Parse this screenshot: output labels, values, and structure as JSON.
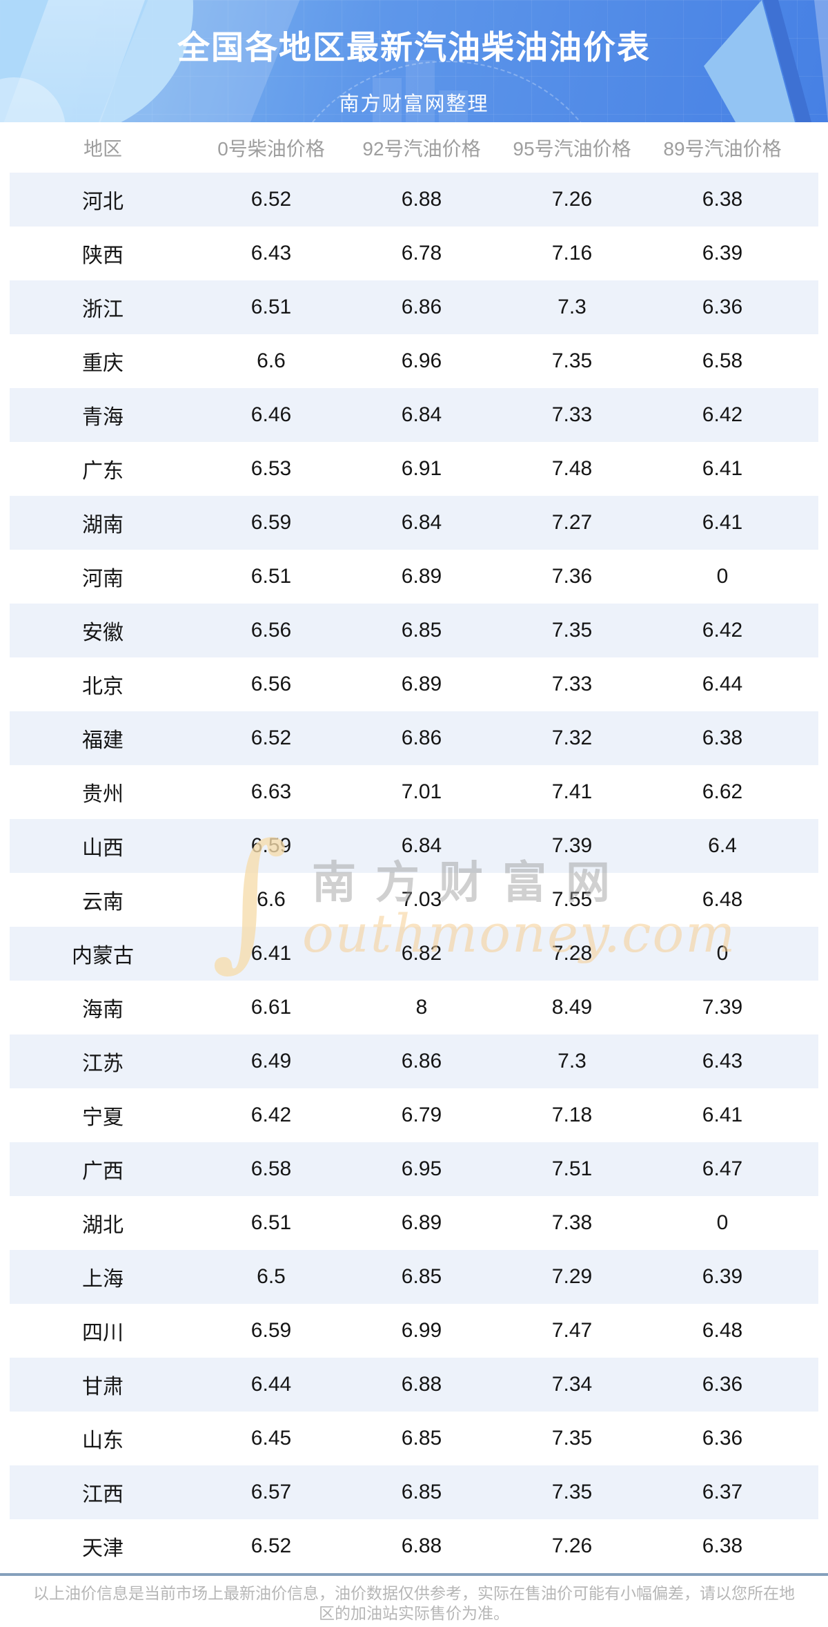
{
  "header": {
    "title": "全国各地区最新汽油柴油油价表",
    "subtitle": "南方财富网整理"
  },
  "table": {
    "columns": [
      "地区",
      "0号柴油价格",
      "92号汽油价格",
      "95号汽油价格",
      "89号汽油价格"
    ],
    "rows": [
      [
        "河北",
        "6.52",
        "6.88",
        "7.26",
        "6.38"
      ],
      [
        "陕西",
        "6.43",
        "6.78",
        "7.16",
        "6.39"
      ],
      [
        "浙江",
        "6.51",
        "6.86",
        "7.3",
        "6.36"
      ],
      [
        "重庆",
        "6.6",
        "6.96",
        "7.35",
        "6.58"
      ],
      [
        "青海",
        "6.46",
        "6.84",
        "7.33",
        "6.42"
      ],
      [
        "广东",
        "6.53",
        "6.91",
        "7.48",
        "6.41"
      ],
      [
        "湖南",
        "6.59",
        "6.84",
        "7.27",
        "6.41"
      ],
      [
        "河南",
        "6.51",
        "6.89",
        "7.36",
        "0"
      ],
      [
        "安徽",
        "6.56",
        "6.85",
        "7.35",
        "6.42"
      ],
      [
        "北京",
        "6.56",
        "6.89",
        "7.33",
        "6.44"
      ],
      [
        "福建",
        "6.52",
        "6.86",
        "7.32",
        "6.38"
      ],
      [
        "贵州",
        "6.63",
        "7.01",
        "7.41",
        "6.62"
      ],
      [
        "山西",
        "6.59",
        "6.84",
        "7.39",
        "6.4"
      ],
      [
        "云南",
        "6.6",
        "7.03",
        "7.55",
        "6.48"
      ],
      [
        "内蒙古",
        "6.41",
        "6.82",
        "7.28",
        "0"
      ],
      [
        "海南",
        "6.61",
        "8",
        "8.49",
        "7.39"
      ],
      [
        "江苏",
        "6.49",
        "6.86",
        "7.3",
        "6.43"
      ],
      [
        "宁夏",
        "6.42",
        "6.79",
        "7.18",
        "6.41"
      ],
      [
        "广西",
        "6.58",
        "6.95",
        "7.51",
        "6.47"
      ],
      [
        "湖北",
        "6.51",
        "6.89",
        "7.38",
        "0"
      ],
      [
        "上海",
        "6.5",
        "6.85",
        "7.29",
        "6.39"
      ],
      [
        "四川",
        "6.59",
        "6.99",
        "7.47",
        "6.48"
      ],
      [
        "甘肃",
        "6.44",
        "6.88",
        "7.34",
        "6.36"
      ],
      [
        "山东",
        "6.45",
        "6.85",
        "7.35",
        "6.36"
      ],
      [
        "江西",
        "6.57",
        "6.85",
        "7.35",
        "6.37"
      ],
      [
        "天津",
        "6.52",
        "6.88",
        "7.26",
        "6.38"
      ]
    ]
  },
  "watermark": {
    "glyph": "∫",
    "cn": "南方财富网",
    "en": "outhmoney.com"
  },
  "footer": {
    "line1": "以上油价信息是当前市场上最新油价信息，油价数据仅供参考，实际在售油价可能有小幅偏差，请以您所在地",
    "line2": "区的加油站实际售价为准。"
  },
  "colors": {
    "header_gradient_start": "#8cc2f3",
    "header_gradient_end": "#4680e4",
    "row_stripe": "#edf2fa",
    "column_header_text": "#9e9e9e",
    "body_text": "#151515",
    "divider": "#85a0bc",
    "footer_text": "#b6b6b6",
    "title_text": "#ffffff",
    "watermark_tan": "#f6dcac"
  }
}
